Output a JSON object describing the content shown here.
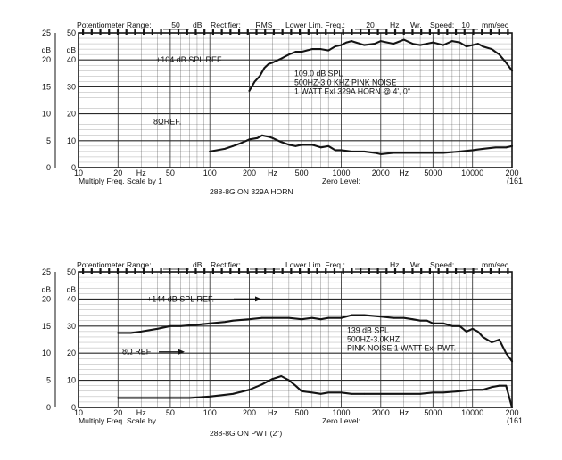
{
  "colors": {
    "ink": "#141414",
    "paper": "#ffffff",
    "grid": "#2a2a2a"
  },
  "chart_data": [
    {
      "type": "line",
      "header": {
        "range_label": "Potentiometer Range:",
        "range_value": "50",
        "range_unit": "dB",
        "rectifier_label": "Rectifier:",
        "rectifier_value": "RMS",
        "lower_label": "Lower Lim. Freq.:",
        "lower_value": "20",
        "lower_unit": "Hz",
        "wr_label": "Wr.",
        "speed_label": "Speed:",
        "speed_value": "10",
        "speed_unit": "mm/sec"
      },
      "y_left_ticks": [
        "0",
        "5",
        "10",
        "15",
        "20",
        "25"
      ],
      "y_right_ticks": [
        "0",
        "10",
        "20",
        "30",
        "40",
        "50"
      ],
      "y_unit_left": "dB",
      "y_unit_right": "dB",
      "x_ticks": [
        "10",
        "20",
        "Hz",
        "50",
        "100",
        "200",
        "Hz",
        "500",
        "1000",
        "2000",
        "Hz",
        "5000",
        "10000",
        "200"
      ],
      "x_end_label": "(161",
      "multiply_label": "Multiply Freq. Scale by 1",
      "zero_level_label": "Zero Level:",
      "caption": "288-8G ON 329A HORN",
      "annotations": {
        "spl_ref": "+104 dB SPL REF.",
        "ohm_ref": "8ΩREF.",
        "note_lines": [
          "109.0 dB SPL",
          "500HZ-3.0 KHZ PINK NOISE",
          "1 WATT Exl 329A HORN @ 4', 0°"
        ]
      },
      "x_scale": "log",
      "xlim": [
        10,
        20000
      ],
      "ylim": [
        0,
        50
      ],
      "grid": true,
      "series": [
        {
          "role": "SPL",
          "x": [
            200,
            220,
            240,
            260,
            280,
            300,
            350,
            400,
            450,
            500,
            600,
            700,
            800,
            900,
            1000,
            1100,
            1200,
            1500,
            1800,
            2000,
            2500,
            3000,
            3500,
            4000,
            5000,
            6000,
            7000,
            8000,
            9000,
            10000,
            11000,
            12000,
            14000,
            16000,
            18000,
            20000
          ],
          "y": [
            28.5,
            32,
            34,
            37,
            38.5,
            39,
            40.5,
            42,
            43,
            43,
            44,
            44,
            43.5,
            45,
            45.5,
            46.5,
            47,
            45.5,
            46,
            47,
            46,
            47.5,
            46,
            45.5,
            46.5,
            45.5,
            47,
            46.5,
            45,
            45.5,
            46,
            45,
            44,
            42,
            39,
            36
          ]
        },
        {
          "role": "impedance",
          "x": [
            100,
            130,
            150,
            170,
            190,
            200,
            230,
            250,
            280,
            300,
            350,
            400,
            450,
            500,
            600,
            700,
            800,
            900,
            1000,
            1200,
            1500,
            1800,
            2000,
            2500,
            3000,
            4000,
            5000,
            6000,
            8000,
            10000,
            12000,
            15000,
            18000,
            20000
          ],
          "y": [
            6,
            7,
            8,
            9,
            10,
            10.5,
            11,
            12,
            11.5,
            11,
            9.5,
            8.5,
            8,
            8.5,
            8.5,
            7.5,
            8,
            6.5,
            6.5,
            6,
            6,
            5.5,
            5,
            5.5,
            5.5,
            5.5,
            5.5,
            5.5,
            6,
            6.5,
            7,
            7.5,
            7.5,
            8
          ]
        }
      ]
    },
    {
      "type": "line",
      "header": {
        "range_label": "Potentiometer Range:",
        "range_value": "",
        "range_unit": "dB",
        "rectifier_label": "Rectifier:",
        "rectifier_value": "",
        "lower_label": "Lower Lim. Freq.:",
        "lower_value": "",
        "lower_unit": "Hz",
        "wr_label": "Wr.",
        "speed_label": "Speed:",
        "speed_value": "",
        "speed_unit": "mm/sec"
      },
      "y_left_ticks": [
        "0",
        "5",
        "10",
        "15",
        "20",
        "25"
      ],
      "y_right_ticks": [
        "0",
        "10",
        "20",
        "30",
        "40",
        "50"
      ],
      "y_unit_left": "dB",
      "y_unit_right": "dB",
      "x_ticks": [
        "10",
        "20",
        "Hz",
        "50",
        "100",
        "200",
        "Hz",
        "500",
        "1000",
        "2000",
        "Hz",
        "5000",
        "10000",
        "200"
      ],
      "x_end_label": "(161",
      "multiply_label": "Multiply Freq. Scale by",
      "zero_level_label": "Zero Level:",
      "caption": "288-8G ON PWT (2\")",
      "annotations": {
        "spl_ref": "+144 dB SPL REF.",
        "ohm_ref": "8Ω REF",
        "note_lines": [
          "139 dB SPL",
          "500HZ-3.0KHZ",
          "PINK NOISE 1 WATT Exl PWT."
        ]
      },
      "x_scale": "log",
      "xlim": [
        10,
        20000
      ],
      "ylim": [
        0,
        50
      ],
      "grid": true,
      "series": [
        {
          "role": "SPL",
          "x": [
            20,
            25,
            30,
            40,
            50,
            60,
            80,
            100,
            130,
            150,
            200,
            250,
            300,
            400,
            500,
            600,
            700,
            800,
            1000,
            1200,
            1500,
            2000,
            2500,
            3000,
            3500,
            4000,
            4500,
            5000,
            6000,
            7000,
            8000,
            9000,
            10000,
            11000,
            12000,
            14000,
            16000,
            18000,
            20000
          ],
          "y": [
            27.5,
            27.5,
            28,
            29,
            30,
            30,
            30.5,
            31,
            31.5,
            32,
            32.5,
            33,
            33,
            33,
            32.5,
            33,
            32.5,
            33,
            33,
            34,
            34,
            33.5,
            33,
            33,
            32.5,
            32,
            32,
            31,
            31,
            30,
            30,
            28,
            29,
            28,
            26,
            24,
            25,
            20,
            17
          ]
        },
        {
          "role": "impedance",
          "x": [
            20,
            30,
            50,
            70,
            100,
            150,
            200,
            250,
            300,
            350,
            400,
            450,
            500,
            600,
            700,
            800,
            1000,
            1200,
            1500,
            2000,
            3000,
            4000,
            5000,
            6000,
            8000,
            10000,
            12000,
            14000,
            16000,
            18000,
            20000
          ],
          "y": [
            3.5,
            3.5,
            3.5,
            3.5,
            4,
            5,
            6.5,
            8.5,
            10.5,
            11.5,
            10,
            8,
            6,
            5.5,
            5,
            5.5,
            5.5,
            5,
            5,
            5,
            5,
            5,
            5.5,
            5.5,
            6,
            6.5,
            6.5,
            7.5,
            8,
            8,
            0
          ]
        }
      ]
    }
  ]
}
